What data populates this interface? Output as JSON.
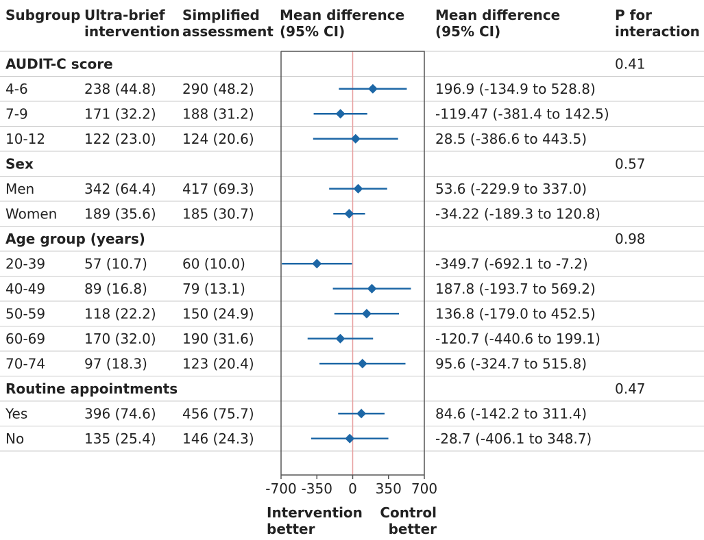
{
  "headers": {
    "subgroup": "Subgroup",
    "ultra": [
      "Ultra-brief",
      "intervention"
    ],
    "simplified": [
      "Simplified",
      "assessment"
    ],
    "plot": [
      "Mean difference",
      "(95% CI)"
    ],
    "mdci": [
      "Mean difference",
      "(95% CI)"
    ],
    "pint": [
      "P for",
      "interaction"
    ]
  },
  "axis": {
    "ticks": [
      -700,
      -350,
      0,
      350,
      700
    ],
    "tick_labels": [
      "-700",
      "-350",
      "0",
      "350",
      "700"
    ],
    "left_label": [
      "Intervention",
      "better"
    ],
    "right_label": [
      "Control",
      "better"
    ]
  },
  "colors": {
    "marker": "#1d67a6",
    "zero_line": "#e8a0a0",
    "frame": "#555555",
    "divider": "#c8c8c8"
  },
  "rows": [
    {
      "kind": "group",
      "label": "AUDIT-C score",
      "p": "0.41"
    },
    {
      "kind": "item",
      "label": "4-6",
      "ultra": "238 (44.8)",
      "simp": "290 (48.2)",
      "md": "196.9 (-134.9 to 528.8)",
      "est": 196.9,
      "lo": -134.9,
      "hi": 528.8
    },
    {
      "kind": "item",
      "label": "7-9",
      "ultra": "171 (32.2)",
      "simp": "188 (31.2)",
      "md": "-119.47 (-381.4 to 142.5)",
      "est": -119.47,
      "lo": -381.4,
      "hi": 142.5
    },
    {
      "kind": "item",
      "label": "10-12",
      "ultra": "122 (23.0)",
      "simp": "124 (20.6)",
      "md": "28.5 (-386.6 to 443.5)",
      "est": 28.5,
      "lo": -386.6,
      "hi": 443.5
    },
    {
      "kind": "group",
      "label": "Sex",
      "p": "0.57"
    },
    {
      "kind": "item",
      "label": "Men",
      "ultra": "342 (64.4)",
      "simp": "417 (69.3)",
      "md": "53.6 (-229.9 to 337.0)",
      "est": 53.6,
      "lo": -229.9,
      "hi": 337.0
    },
    {
      "kind": "item",
      "label": "Women",
      "ultra": "189 (35.6)",
      "simp": "185 (30.7)",
      "md": "-34.22 (-189.3 to 120.8)",
      "est": -34.22,
      "lo": -189.3,
      "hi": 120.8
    },
    {
      "kind": "group",
      "label": "Age group (years)",
      "p": "0.98"
    },
    {
      "kind": "item",
      "label": "20-39",
      "ultra": "57 (10.7)",
      "simp": "60 (10.0)",
      "md": "-349.7 (-692.1 to -7.2)",
      "est": -349.7,
      "lo": -692.1,
      "hi": -7.2
    },
    {
      "kind": "item",
      "label": "40-49",
      "ultra": "89 (16.8)",
      "simp": "79 (13.1)",
      "md": "187.8 (-193.7 to 569.2)",
      "est": 187.8,
      "lo": -193.7,
      "hi": 569.2
    },
    {
      "kind": "item",
      "label": "50-59",
      "ultra": "118 (22.2)",
      "simp": "150 (24.9)",
      "md": "136.8 (-179.0 to 452.5)",
      "est": 136.8,
      "lo": -179.0,
      "hi": 452.5
    },
    {
      "kind": "item",
      "label": "60-69",
      "ultra": "170 (32.0)",
      "simp": "190 (31.6)",
      "md": "-120.7 (-440.6 to 199.1)",
      "est": -120.7,
      "lo": -440.6,
      "hi": 199.1
    },
    {
      "kind": "item",
      "label": "70-74",
      "ultra": "97 (18.3)",
      "simp": "123 (20.4)",
      "md": "95.6 (-324.7 to 515.8)",
      "est": 95.6,
      "lo": -324.7,
      "hi": 515.8
    },
    {
      "kind": "group",
      "label": "Routine appointments",
      "p": "0.47"
    },
    {
      "kind": "item",
      "label": "Yes",
      "ultra": "396 (74.6)",
      "simp": "456 (75.7)",
      "md": "84.6 (-142.2 to 311.4)",
      "est": 84.6,
      "lo": -142.2,
      "hi": 311.4
    },
    {
      "kind": "item",
      "label": "No",
      "ultra": "135 (25.4)",
      "simp": "146 (24.3)",
      "md": "-28.7 (-406.1 to 348.7)",
      "est": -28.7,
      "lo": -406.1,
      "hi": 348.7
    }
  ],
  "chart_data": {
    "type": "forest",
    "categories": [
      "4-6",
      "7-9",
      "10-12",
      "Men",
      "Women",
      "20-39",
      "40-49",
      "50-59",
      "60-69",
      "70-74",
      "Yes",
      "No"
    ],
    "groups": [
      {
        "name": "AUDIT-C score",
        "categories": [
          "4-6",
          "7-9",
          "10-12"
        ],
        "p_interaction": 0.41
      },
      {
        "name": "Sex",
        "categories": [
          "Men",
          "Women"
        ],
        "p_interaction": 0.57
      },
      {
        "name": "Age group (years)",
        "categories": [
          "20-39",
          "40-49",
          "50-59",
          "60-69",
          "70-74"
        ],
        "p_interaction": 0.98
      },
      {
        "name": "Routine appointments",
        "categories": [
          "Yes",
          "No"
        ],
        "p_interaction": 0.47
      }
    ],
    "values": [
      196.9,
      -119.47,
      28.5,
      53.6,
      -34.22,
      -349.7,
      187.8,
      136.8,
      -120.7,
      95.6,
      84.6,
      -28.7
    ],
    "ci_lower": [
      -134.9,
      -381.4,
      -386.6,
      -229.9,
      -189.3,
      -692.1,
      -193.7,
      -179.0,
      -440.6,
      -324.7,
      -142.2,
      -406.1
    ],
    "ci_upper": [
      528.8,
      142.5,
      443.5,
      337.0,
      120.8,
      -7.2,
      569.2,
      452.5,
      199.1,
      515.8,
      311.4,
      348.7
    ],
    "xlabel": "Mean difference (95% CI)",
    "xlim": [
      -700,
      700
    ],
    "xticks": [
      -700,
      -350,
      0,
      350,
      700
    ],
    "reference_line": 0,
    "grid": false
  }
}
